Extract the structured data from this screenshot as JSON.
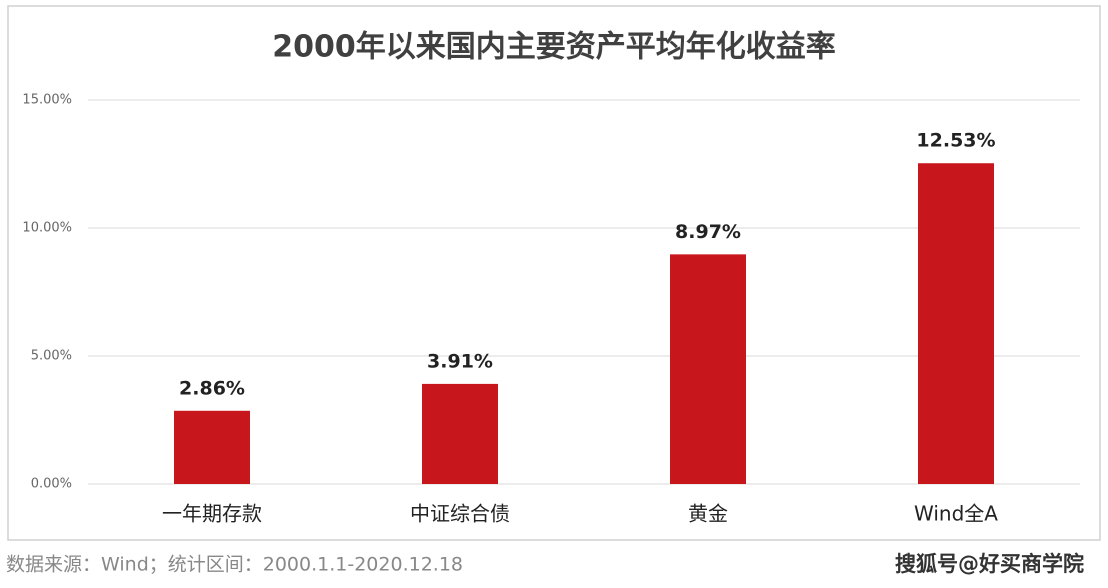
{
  "chart_data": {
    "type": "bar",
    "title": "2000年以来国内主要资产平均年化收益率",
    "categories": [
      "一年期存款",
      "中证综合债",
      "黄金",
      "Wind全A"
    ],
    "values": [
      2.86,
      3.91,
      8.97,
      12.53
    ],
    "value_labels": [
      "2.86%",
      "3.91%",
      "8.97%",
      "12.53%"
    ],
    "color": "#c8161d",
    "ylim": [
      0,
      15
    ],
    "yticks": [
      {
        "value": 0,
        "label": "0.00%"
      },
      {
        "value": 5,
        "label": "5.00%"
      },
      {
        "value": 10,
        "label": "10.00%"
      },
      {
        "value": 15,
        "label": "15.00%"
      }
    ],
    "grid": true
  },
  "footer": {
    "source": "数据来源：Wind；统计区间：2000.1.1-2020.12.18",
    "watermark": "搜狐号@好买商学院"
  }
}
